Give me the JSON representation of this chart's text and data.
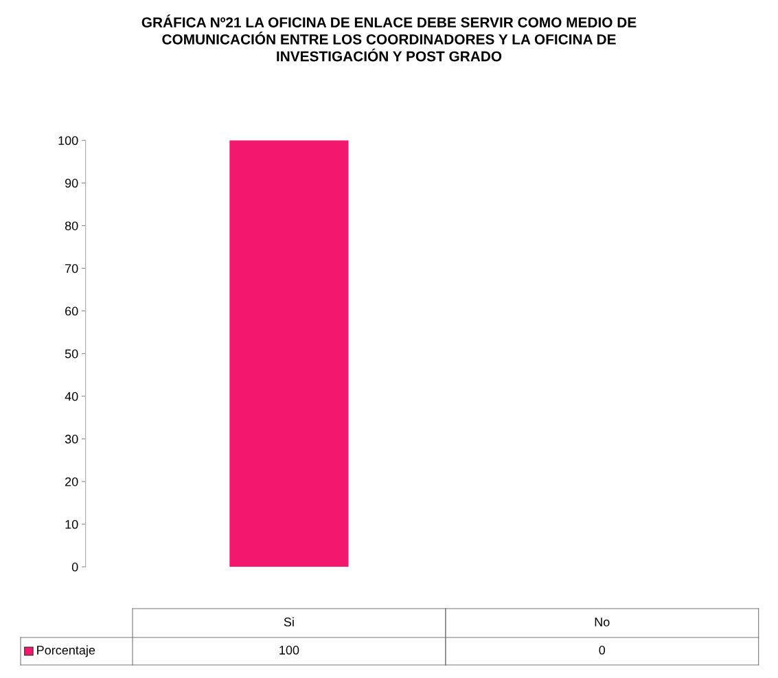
{
  "chart_data": {
    "type": "bar",
    "title": "GRÁFICA Nº21 LA OFICINA DE ENLACE DEBE SERVIR COMO MEDIO DE\nCOMUNICACIÓN ENTRE LOS COORDINADORES Y LA OFICINA DE\nINVESTIGACIÓN Y POST GRADO",
    "categories": [
      "Si",
      "No"
    ],
    "series": [
      {
        "name": "Porcentaje",
        "color": "#f2186e",
        "values": [
          100,
          0
        ]
      }
    ],
    "ylim": [
      0,
      100
    ],
    "yticks": [
      0,
      10,
      20,
      30,
      40,
      50,
      60,
      70,
      80,
      90,
      100
    ],
    "data_labels": true,
    "grid": false,
    "legend": "bottom"
  }
}
